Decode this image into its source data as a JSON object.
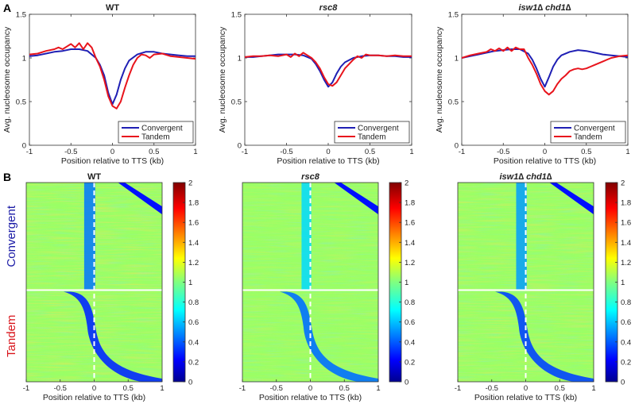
{
  "panel_labels": [
    "A",
    "B"
  ],
  "chart_data": [
    {
      "type": "line",
      "title": "WT",
      "xlabel": "Position relative to TTS (kb)",
      "ylabel": "Avg. nucleosome occupancy",
      "xlim": [
        -1,
        1
      ],
      "ylim": [
        0,
        1.5
      ],
      "xticks": [
        -1,
        -0.5,
        0,
        0.5,
        1
      ],
      "yticks": [
        0,
        0.5,
        1,
        1.5
      ],
      "legend": "bottom-right",
      "grid": false,
      "series": [
        {
          "name": "Convergent",
          "color": "#1f1fb4",
          "x": [
            -1,
            -0.9,
            -0.8,
            -0.7,
            -0.6,
            -0.5,
            -0.4,
            -0.3,
            -0.2,
            -0.15,
            -0.1,
            -0.05,
            0,
            0.05,
            0.1,
            0.15,
            0.2,
            0.3,
            0.4,
            0.5,
            0.6,
            0.7,
            0.8,
            0.9,
            1
          ],
          "y": [
            1.02,
            1.03,
            1.05,
            1.07,
            1.08,
            1.1,
            1.1,
            1.08,
            1.0,
            0.92,
            0.8,
            0.6,
            0.47,
            0.58,
            0.75,
            0.88,
            0.97,
            1.04,
            1.07,
            1.07,
            1.05,
            1.04,
            1.03,
            1.02,
            1.02
          ]
        },
        {
          "name": "Tandem",
          "color": "#e8141c",
          "x": [
            -1,
            -0.9,
            -0.8,
            -0.7,
            -0.65,
            -0.6,
            -0.55,
            -0.5,
            -0.45,
            -0.4,
            -0.35,
            -0.3,
            -0.25,
            -0.2,
            -0.15,
            -0.1,
            -0.05,
            0,
            0.05,
            0.1,
            0.15,
            0.2,
            0.25,
            0.3,
            0.35,
            0.4,
            0.45,
            0.5,
            0.6,
            0.7,
            0.8,
            0.9,
            1
          ],
          "y": [
            1.04,
            1.05,
            1.08,
            1.1,
            1.12,
            1.1,
            1.13,
            1.16,
            1.12,
            1.17,
            1.1,
            1.17,
            1.12,
            1.0,
            0.9,
            0.75,
            0.56,
            0.45,
            0.42,
            0.5,
            0.66,
            0.8,
            0.92,
            1.0,
            1.04,
            1.03,
            1.0,
            1.04,
            1.05,
            1.02,
            1.01,
            1.0,
            0.99
          ]
        }
      ]
    },
    {
      "type": "line",
      "title": "rsc8",
      "xlabel": "Position relative to TTS (kb)",
      "ylabel": "Avg. nucleosome occupancy",
      "xlim": [
        -1,
        1
      ],
      "ylim": [
        0,
        1.5
      ],
      "xticks": [
        -1,
        -0.5,
        0,
        0.5,
        1
      ],
      "yticks": [
        0,
        0.5,
        1,
        1.5
      ],
      "legend": "bottom-right",
      "grid": false,
      "series": [
        {
          "name": "Convergent",
          "color": "#1f1fb4",
          "x": [
            -1,
            -0.9,
            -0.8,
            -0.7,
            -0.6,
            -0.5,
            -0.4,
            -0.3,
            -0.2,
            -0.15,
            -0.1,
            -0.05,
            0,
            0.05,
            0.1,
            0.15,
            0.2,
            0.3,
            0.4,
            0.5,
            0.6,
            0.7,
            0.8,
            0.9,
            1
          ],
          "y": [
            1.01,
            1.01,
            1.02,
            1.03,
            1.04,
            1.04,
            1.04,
            1.03,
            0.99,
            0.93,
            0.85,
            0.75,
            0.67,
            0.72,
            0.82,
            0.9,
            0.95,
            1.0,
            1.02,
            1.03,
            1.03,
            1.02,
            1.02,
            1.01,
            1.01
          ]
        },
        {
          "name": "Tandem",
          "color": "#e8141c",
          "x": [
            -1,
            -0.9,
            -0.8,
            -0.7,
            -0.6,
            -0.5,
            -0.45,
            -0.4,
            -0.35,
            -0.3,
            -0.25,
            -0.2,
            -0.15,
            -0.1,
            -0.05,
            0,
            0.05,
            0.1,
            0.15,
            0.2,
            0.25,
            0.3,
            0.35,
            0.4,
            0.45,
            0.5,
            0.6,
            0.7,
            0.8,
            0.9,
            1
          ],
          "y": [
            1.01,
            1.02,
            1.02,
            1.03,
            1.02,
            1.04,
            1.01,
            1.05,
            1.02,
            1.06,
            1.03,
            1.0,
            0.95,
            0.88,
            0.78,
            0.7,
            0.68,
            0.72,
            0.8,
            0.88,
            0.93,
            0.98,
            1.02,
            1.0,
            1.04,
            1.03,
            1.03,
            1.02,
            1.03,
            1.02,
            1.02
          ]
        }
      ]
    },
    {
      "type": "line",
      "title": "isw1∆ chd1∆",
      "xlabel": "Position relative to TTS (kb)",
      "ylabel": "Avg. nucleosome occupancy",
      "xlim": [
        -1,
        1
      ],
      "ylim": [
        0,
        1.5
      ],
      "xticks": [
        -1,
        -0.5,
        0,
        0.5,
        1
      ],
      "yticks": [
        0,
        0.5,
        1,
        1.5
      ],
      "legend": "bottom-right",
      "grid": false,
      "series": [
        {
          "name": "Convergent",
          "color": "#1f1fb4",
          "x": [
            -1,
            -0.9,
            -0.8,
            -0.7,
            -0.6,
            -0.5,
            -0.4,
            -0.3,
            -0.2,
            -0.15,
            -0.1,
            -0.05,
            0,
            0.05,
            0.1,
            0.15,
            0.2,
            0.3,
            0.4,
            0.5,
            0.6,
            0.7,
            0.8,
            0.9,
            1
          ],
          "y": [
            1.0,
            1.02,
            1.04,
            1.06,
            1.08,
            1.09,
            1.1,
            1.1,
            1.05,
            0.98,
            0.88,
            0.76,
            0.67,
            0.78,
            0.9,
            0.98,
            1.03,
            1.07,
            1.09,
            1.08,
            1.06,
            1.04,
            1.03,
            1.02,
            1.01
          ]
        },
        {
          "name": "Tandem",
          "color": "#e8141c",
          "x": [
            -1,
            -0.9,
            -0.8,
            -0.7,
            -0.65,
            -0.6,
            -0.55,
            -0.5,
            -0.45,
            -0.4,
            -0.35,
            -0.3,
            -0.25,
            -0.2,
            -0.15,
            -0.1,
            -0.05,
            0,
            0.05,
            0.1,
            0.15,
            0.2,
            0.25,
            0.3,
            0.35,
            0.4,
            0.45,
            0.5,
            0.55,
            0.6,
            0.7,
            0.8,
            0.9,
            1
          ],
          "y": [
            1.0,
            1.03,
            1.05,
            1.07,
            1.1,
            1.08,
            1.11,
            1.08,
            1.12,
            1.08,
            1.12,
            1.1,
            1.1,
            1.0,
            0.92,
            0.82,
            0.7,
            0.62,
            0.58,
            0.62,
            0.7,
            0.76,
            0.8,
            0.85,
            0.87,
            0.88,
            0.87,
            0.88,
            0.9,
            0.92,
            0.96,
            1.0,
            1.02,
            1.03
          ]
        }
      ]
    },
    {
      "type": "heatmap",
      "title": "WT",
      "xlabel": "Position relative to TTS (kb)",
      "xlim": [
        -1,
        1
      ],
      "xticks": [
        -1,
        -0.5,
        0,
        0.5,
        1
      ],
      "row_groups": [
        {
          "name": "Convergent",
          "color": "#1a1aa6"
        },
        {
          "name": "Tandem",
          "color": "#d9141b"
        }
      ],
      "colorbar": {
        "min": 0,
        "max": 2,
        "ticks": [
          0,
          0.2,
          0.4,
          0.6,
          0.8,
          1,
          1.2,
          1.4,
          1.6,
          1.8,
          2
        ],
        "colormap": "jet"
      }
    },
    {
      "type": "heatmap",
      "title": "rsc8",
      "xlabel": "Position relative to TTS (kb)",
      "xlim": [
        -1,
        1
      ],
      "xticks": [
        -1,
        -0.5,
        0,
        0.5,
        1
      ],
      "colorbar": {
        "min": 0,
        "max": 2,
        "ticks": [
          0,
          0.2,
          0.4,
          0.6,
          0.8,
          1,
          1.2,
          1.4,
          1.6,
          1.8,
          2
        ],
        "colormap": "jet"
      }
    },
    {
      "type": "heatmap",
      "title": "isw1∆ chd1∆",
      "xlabel": "Position relative to TTS (kb)",
      "xlim": [
        -1,
        1
      ],
      "xticks": [
        -1,
        -0.5,
        0,
        0.5,
        1
      ],
      "colorbar": {
        "min": 0,
        "max": 2,
        "ticks": [
          0,
          0.2,
          0.4,
          0.6,
          0.8,
          1,
          1.2,
          1.4,
          1.6,
          1.8,
          2
        ],
        "colormap": "jet"
      }
    }
  ]
}
